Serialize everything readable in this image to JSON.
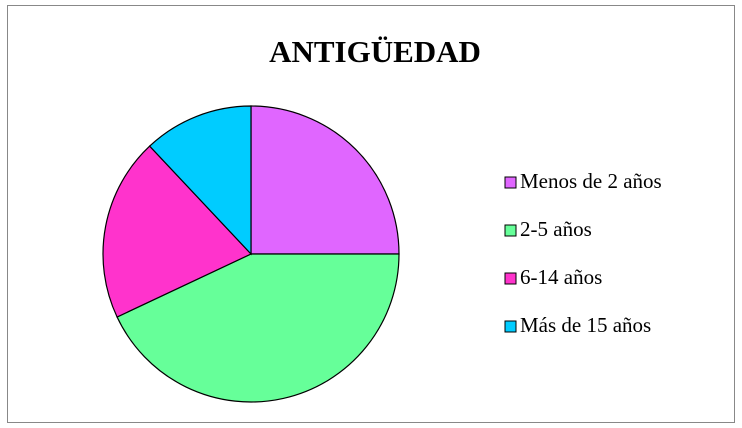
{
  "chart_data": {
    "type": "pie",
    "title": "ANTIGÜEDAD",
    "categories": [
      "Menos de 2 años",
      "2-5 años",
      "6-14 años",
      "Más de 15 años"
    ],
    "values": [
      25,
      43,
      20,
      12
    ],
    "colors": [
      "#e066ff",
      "#66ff99",
      "#ff33cc",
      "#00ccff"
    ],
    "legend": "right"
  }
}
